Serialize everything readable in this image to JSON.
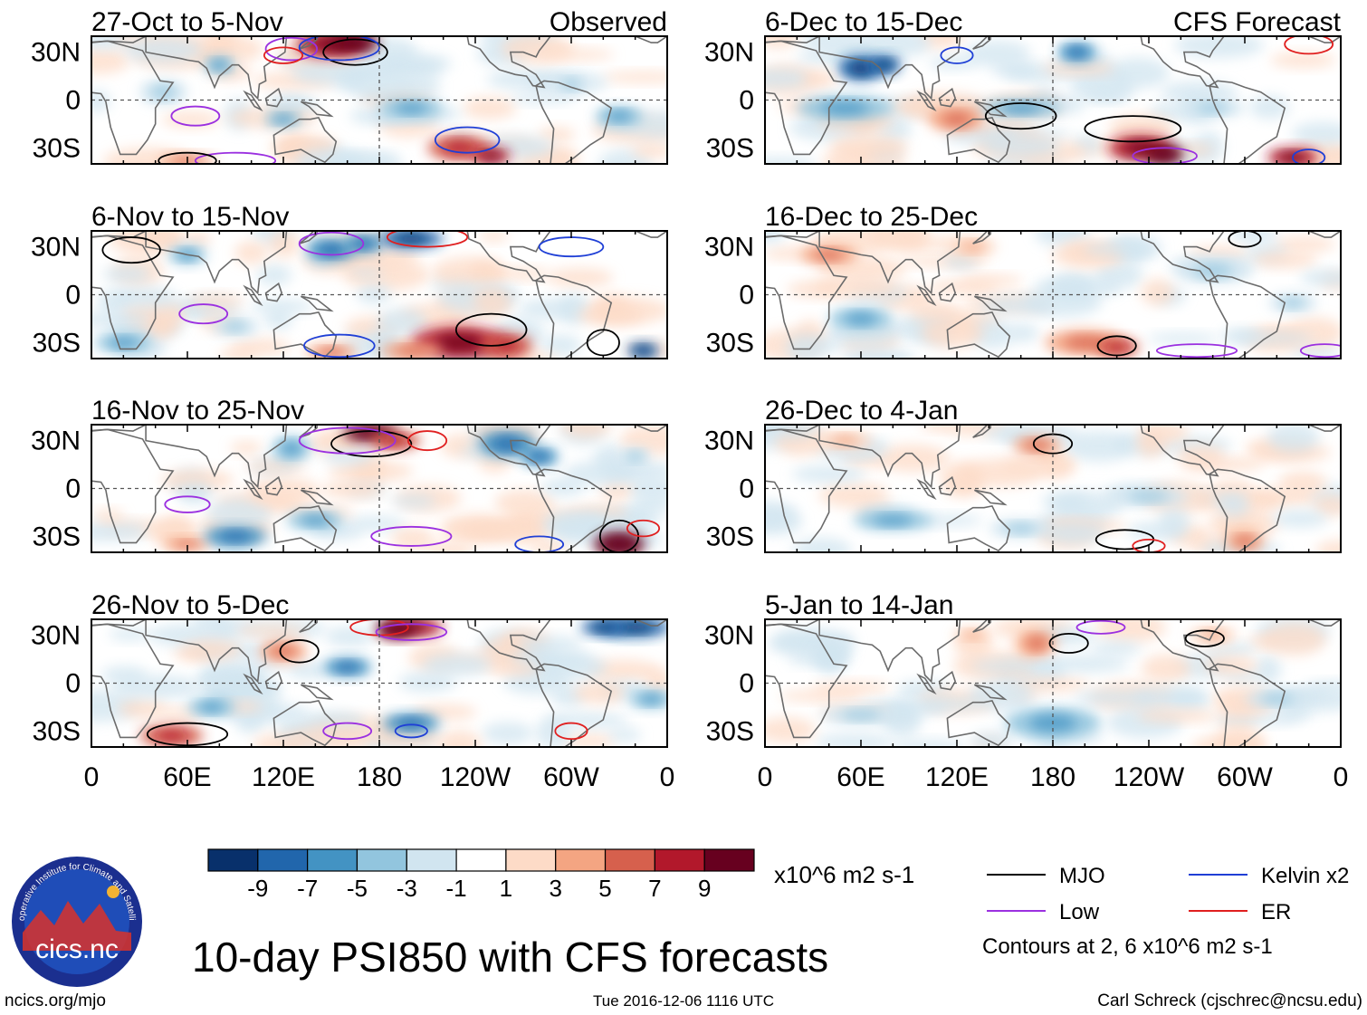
{
  "chart_data": {
    "type": "heatmap",
    "title": "10-day PSI850 with CFS forecasts",
    "units": "x10^6 m2 s-1",
    "x_ticks": [
      "0",
      "60E",
      "120E",
      "180",
      "120W",
      "60W",
      "0"
    ],
    "y_ticks": [
      "30N",
      "0",
      "30S"
    ],
    "xlim": [
      0,
      360
    ],
    "ylim": [
      -40,
      40
    ],
    "colorbar": {
      "labels": [
        "-9",
        "-7",
        "-5",
        "-3",
        "-1",
        "1",
        "3",
        "5",
        "7",
        "9"
      ],
      "levels": [
        -9,
        -7,
        -5,
        -3,
        -1,
        1,
        3,
        5,
        7,
        9
      ],
      "colors": [
        "#08306b",
        "#2166ac",
        "#4393c3",
        "#92c5de",
        "#d1e5f0",
        "#ffffff",
        "#fddbc7",
        "#f4a582",
        "#d6604d",
        "#b2182b",
        "#67001f"
      ]
    },
    "panels": [
      {
        "title": "27-Oct to 5-Nov",
        "tag": "Observed",
        "col": 0,
        "row": 0
      },
      {
        "title": "6-Nov to 15-Nov",
        "tag": "",
        "col": 0,
        "row": 1
      },
      {
        "title": "16-Nov to 25-Nov",
        "tag": "",
        "col": 0,
        "row": 2
      },
      {
        "title": "26-Nov to 5-Dec",
        "tag": "",
        "col": 0,
        "row": 3
      },
      {
        "title": "6-Dec to 15-Dec",
        "tag": "CFS Forecast",
        "col": 1,
        "row": 0
      },
      {
        "title": "16-Dec to 25-Dec",
        "tag": "",
        "col": 1,
        "row": 1
      },
      {
        "title": "26-Dec to 4-Jan",
        "tag": "",
        "col": 1,
        "row": 2
      },
      {
        "title": "5-Jan to 14-Jan",
        "tag": "",
        "col": 1,
        "row": 3
      }
    ],
    "legend": [
      {
        "label": "MJO",
        "color": "#000000"
      },
      {
        "label": "Kelvin x2",
        "color": "#1f3fd6"
      },
      {
        "label": "Low",
        "color": "#9b30e0"
      },
      {
        "label": "ER",
        "color": "#e01f1f"
      }
    ],
    "contour_note": "Contours at 2, 6 x10^6 m2 s-1"
  },
  "footer": {
    "logo_text": "cics.nc",
    "logo_ring_text": "Cooperative Institute for Climate and Satellites",
    "url": "ncics.org/mjo",
    "timestamp": "Tue 2016-12-06 1116 UTC",
    "author": "Carl Schreck (cjschrec@ncsu.edu)"
  }
}
